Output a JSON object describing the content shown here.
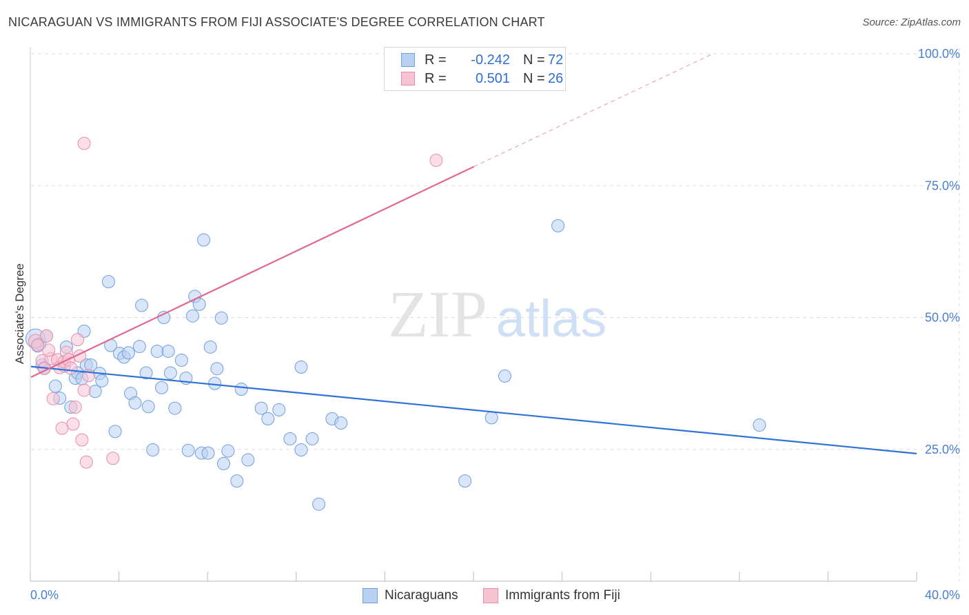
{
  "header": {
    "title": "NICARAGUAN VS IMMIGRANTS FROM FIJI ASSOCIATE'S DEGREE CORRELATION CHART",
    "source": "Source: ZipAtlas.com"
  },
  "legend": {
    "r_label": "R =",
    "n_label": "N =",
    "series": [
      {
        "r": "-0.242",
        "n": "72"
      },
      {
        "r": "0.501",
        "n": "26"
      }
    ]
  },
  "bottom_legend": {
    "items": [
      {
        "label": "Nicaraguans"
      },
      {
        "label": "Immigrants from Fiji"
      }
    ]
  },
  "watermark": {
    "zip": "ZIP",
    "atlas": "atlas"
  },
  "colors": {
    "blue_fill": "#b9d0f2",
    "blue_stroke": "#6f9fdc",
    "blue_line": "#2f72d6",
    "pink_fill": "#f7c3d3",
    "pink_stroke": "#e58fab",
    "pink_line": "#e0688f",
    "tick_text": "#4a7fd0",
    "grid": "#dddddd"
  },
  "chart_data": {
    "type": "scatter",
    "title": "NICARAGUAN VS IMMIGRANTS FROM FIJI ASSOCIATE'S DEGREE CORRELATION CHART",
    "xlabel": "",
    "ylabel": "Associate's Degree",
    "xlim": [
      0,
      40
    ],
    "ylim": [
      0,
      100
    ],
    "x_ticks": [
      "0.0%",
      "40.0%"
    ],
    "y_ticks": [
      {
        "value": 25,
        "label": "25.0%"
      },
      {
        "value": 50,
        "label": "50.0%"
      },
      {
        "value": 75,
        "label": "75.0%"
      },
      {
        "value": 100,
        "label": "100.0%"
      }
    ],
    "grid": true,
    "series": [
      {
        "name": "Nicaraguans",
        "color": "#6f9fdc",
        "r": -0.242,
        "n": 72,
        "trend": {
          "x0": 0.0,
          "y0": 40.7,
          "x1": 40.0,
          "y1": 24.2
        },
        "points": [
          [
            0.2,
            46.0,
            14
          ],
          [
            0.4,
            45.0,
            9
          ],
          [
            0.7,
            46.5,
            9
          ],
          [
            0.5,
            41.0,
            9
          ],
          [
            0.6,
            40.5,
            9
          ],
          [
            1.1,
            37.0,
            9
          ],
          [
            1.3,
            34.7,
            9
          ],
          [
            1.5,
            40.8,
            9
          ],
          [
            1.6,
            44.4,
            9
          ],
          [
            1.8,
            33.0,
            9
          ],
          [
            2.0,
            38.5,
            9
          ],
          [
            2.1,
            39.5,
            9
          ],
          [
            2.3,
            38.4,
            9
          ],
          [
            2.4,
            47.4,
            9
          ],
          [
            2.5,
            41.0,
            9
          ],
          [
            2.7,
            41.0,
            9
          ],
          [
            2.9,
            36.0,
            9
          ],
          [
            3.1,
            39.4,
            9
          ],
          [
            3.2,
            38.0,
            9
          ],
          [
            3.5,
            56.8,
            9
          ],
          [
            3.6,
            44.7,
            9
          ],
          [
            3.8,
            28.4,
            9
          ],
          [
            4.0,
            43.2,
            9
          ],
          [
            4.2,
            42.5,
            9
          ],
          [
            4.4,
            43.3,
            9
          ],
          [
            4.5,
            35.6,
            9
          ],
          [
            4.7,
            33.8,
            9
          ],
          [
            4.9,
            44.5,
            9
          ],
          [
            5.0,
            52.3,
            9
          ],
          [
            5.2,
            39.5,
            9
          ],
          [
            5.3,
            33.1,
            9
          ],
          [
            5.5,
            24.9,
            9
          ],
          [
            5.7,
            43.6,
            9
          ],
          [
            5.9,
            36.7,
            9
          ],
          [
            6.0,
            50.0,
            9
          ],
          [
            6.2,
            43.6,
            9
          ],
          [
            6.3,
            39.5,
            9
          ],
          [
            6.5,
            32.8,
            9
          ],
          [
            6.8,
            41.9,
            9
          ],
          [
            7.0,
            38.5,
            9
          ],
          [
            7.1,
            24.8,
            9
          ],
          [
            7.3,
            50.3,
            9
          ],
          [
            7.4,
            54.0,
            9
          ],
          [
            7.6,
            52.5,
            9
          ],
          [
            7.7,
            24.3,
            9
          ],
          [
            7.8,
            64.7,
            9
          ],
          [
            8.0,
            24.3,
            9
          ],
          [
            8.1,
            44.4,
            9
          ],
          [
            8.3,
            37.5,
            9
          ],
          [
            8.4,
            40.3,
            9
          ],
          [
            8.6,
            49.9,
            9
          ],
          [
            8.7,
            22.3,
            9
          ],
          [
            8.9,
            24.7,
            9
          ],
          [
            9.3,
            19.0,
            9
          ],
          [
            9.5,
            36.4,
            9
          ],
          [
            9.8,
            23.0,
            9
          ],
          [
            10.4,
            32.8,
            9
          ],
          [
            10.7,
            30.8,
            9
          ],
          [
            11.2,
            32.5,
            9
          ],
          [
            11.7,
            27.0,
            9
          ],
          [
            12.2,
            40.6,
            9
          ],
          [
            12.2,
            24.9,
            9
          ],
          [
            12.7,
            27.0,
            9
          ],
          [
            13.0,
            14.6,
            9
          ],
          [
            13.6,
            30.8,
            9
          ],
          [
            14.0,
            30.0,
            9
          ],
          [
            19.6,
            19.0,
            9
          ],
          [
            20.8,
            31.0,
            9
          ],
          [
            21.4,
            38.9,
            9
          ],
          [
            23.8,
            67.4,
            9
          ],
          [
            32.9,
            29.6,
            9
          ],
          [
            0.3,
            44.6,
            9
          ]
        ]
      },
      {
        "name": "Immigrants from Fiji",
        "color": "#e58fab",
        "r": 0.501,
        "n": 26,
        "trend": {
          "x0": 0.0,
          "y0": 38.7,
          "x1": 20.0,
          "y1": 78.6
        },
        "trend_dashed_to": {
          "x": 30.8,
          "y": 100.0
        },
        "points": [
          [
            0.2,
            45.5,
            10
          ],
          [
            0.3,
            44.8,
            9
          ],
          [
            0.5,
            41.8,
            9
          ],
          [
            0.6,
            40.3,
            9
          ],
          [
            0.7,
            46.5,
            9
          ],
          [
            0.9,
            42.2,
            9
          ],
          [
            1.0,
            34.6,
            9
          ],
          [
            1.2,
            42.0,
            9
          ],
          [
            1.3,
            40.5,
            9
          ],
          [
            1.4,
            29.0,
            9
          ],
          [
            1.5,
            41.6,
            9
          ],
          [
            1.6,
            43.4,
            9
          ],
          [
            1.7,
            42.0,
            9
          ],
          [
            1.8,
            40.4,
            9
          ],
          [
            1.9,
            29.8,
            9
          ],
          [
            2.0,
            33.0,
            9
          ],
          [
            2.1,
            45.8,
            9
          ],
          [
            2.2,
            42.7,
            9
          ],
          [
            2.3,
            26.8,
            9
          ],
          [
            2.4,
            36.2,
            9
          ],
          [
            2.5,
            22.6,
            9
          ],
          [
            2.6,
            39.0,
            9
          ],
          [
            2.4,
            83.0,
            9
          ],
          [
            3.7,
            23.3,
            9
          ],
          [
            18.3,
            79.8,
            9
          ],
          [
            0.8,
            43.8,
            9
          ]
        ]
      }
    ]
  }
}
